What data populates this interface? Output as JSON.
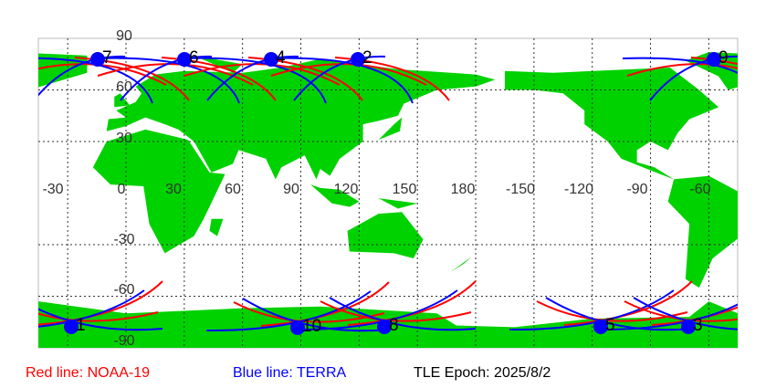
{
  "map": {
    "longitude_labels": [
      "-30",
      "0",
      "30",
      "60",
      "90",
      "120",
      "150",
      "180",
      "-150",
      "-120",
      "-90",
      "-60"
    ],
    "latitude_labels": [
      "90",
      "60",
      "30",
      "-30",
      "-60",
      "-90"
    ],
    "satellite_passes": [
      {
        "label": "7"
      },
      {
        "label": "6"
      },
      {
        "label": "4"
      },
      {
        "label": "2"
      },
      {
        "label": "9"
      },
      {
        "label": "1"
      },
      {
        "label": "10"
      },
      {
        "label": "8"
      },
      {
        "label": "5"
      },
      {
        "label": "3"
      }
    ],
    "legend": [
      {
        "text": "Red line: NOAA-19",
        "color": "#ff0000"
      },
      {
        "text": "Blue line: TERRA",
        "color": "#0000ff"
      },
      {
        "text": "TLE Epoch: 2025/8/2",
        "color": "#000000"
      }
    ]
  }
}
